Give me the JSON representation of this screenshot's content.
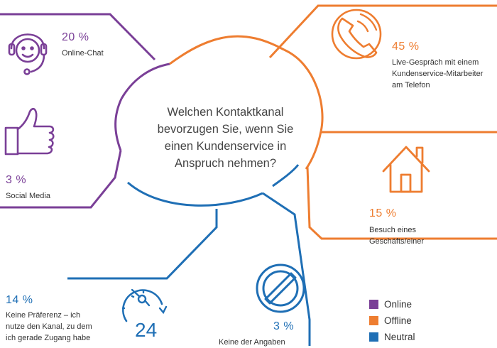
{
  "question": "Welchen Kontaktkanal bevorzugen Sie, wenn Sie einen Kundenservice in Anspruch nehmen?",
  "colors": {
    "online": "#7a3f97",
    "offline": "#ee7d30",
    "neutral": "#1f6fb5"
  },
  "chart_data": {
    "type": "infographic",
    "categories": [
      "Online-Chat",
      "Social Media",
      "Live-Gespräch mit einem Kundenservice-Mitarbeiter am Telefon",
      "Besuch eines Geschäfts/einer",
      "Keine Präferenz – ich nutze den Kanal, zu dem ich gerade Zugang habe",
      "Keine der Angaben"
    ],
    "values": [
      20,
      3,
      45,
      15,
      14,
      3
    ],
    "value_labels": [
      "20 %",
      "3 %",
      "45 %",
      "15 %",
      "14 %",
      "3 %"
    ],
    "groups": [
      "Online",
      "Online",
      "Offline",
      "Offline",
      "Neutral",
      "Neutral"
    ],
    "icons": [
      "headset-icon",
      "thumbs-up-icon",
      "phone-icon",
      "house-icon",
      "clock-24-icon",
      "no-entry-icon"
    ]
  },
  "items": {
    "online_chat": {
      "value": "20 %",
      "label": "Online-Chat"
    },
    "social_media": {
      "value": "3 %",
      "label": "Social Media"
    },
    "telefon": {
      "value": "45 %",
      "line1": "Live-Gespräch mit einem",
      "line2": "Kundenservice-Mitarbeiter",
      "line3": "am Telefon"
    },
    "geschaeft": {
      "value": "15 %",
      "line1": "Besuch eines",
      "line2": "Geschäfts/einer"
    },
    "keine_praeferenz": {
      "value": "14 %",
      "line1": "Keine Präferenz – ich",
      "line2": "nutze den Kanal, zu dem",
      "line3": "ich gerade Zugang habe"
    },
    "keine_angaben": {
      "value": "3 %",
      "label": "Keine der Angaben"
    }
  },
  "legend": [
    {
      "label": "Online",
      "color": "#7a3f97"
    },
    {
      "label": "Offline",
      "color": "#ee7d30"
    },
    {
      "label": "Neutral",
      "color": "#1f6fb5"
    }
  ]
}
